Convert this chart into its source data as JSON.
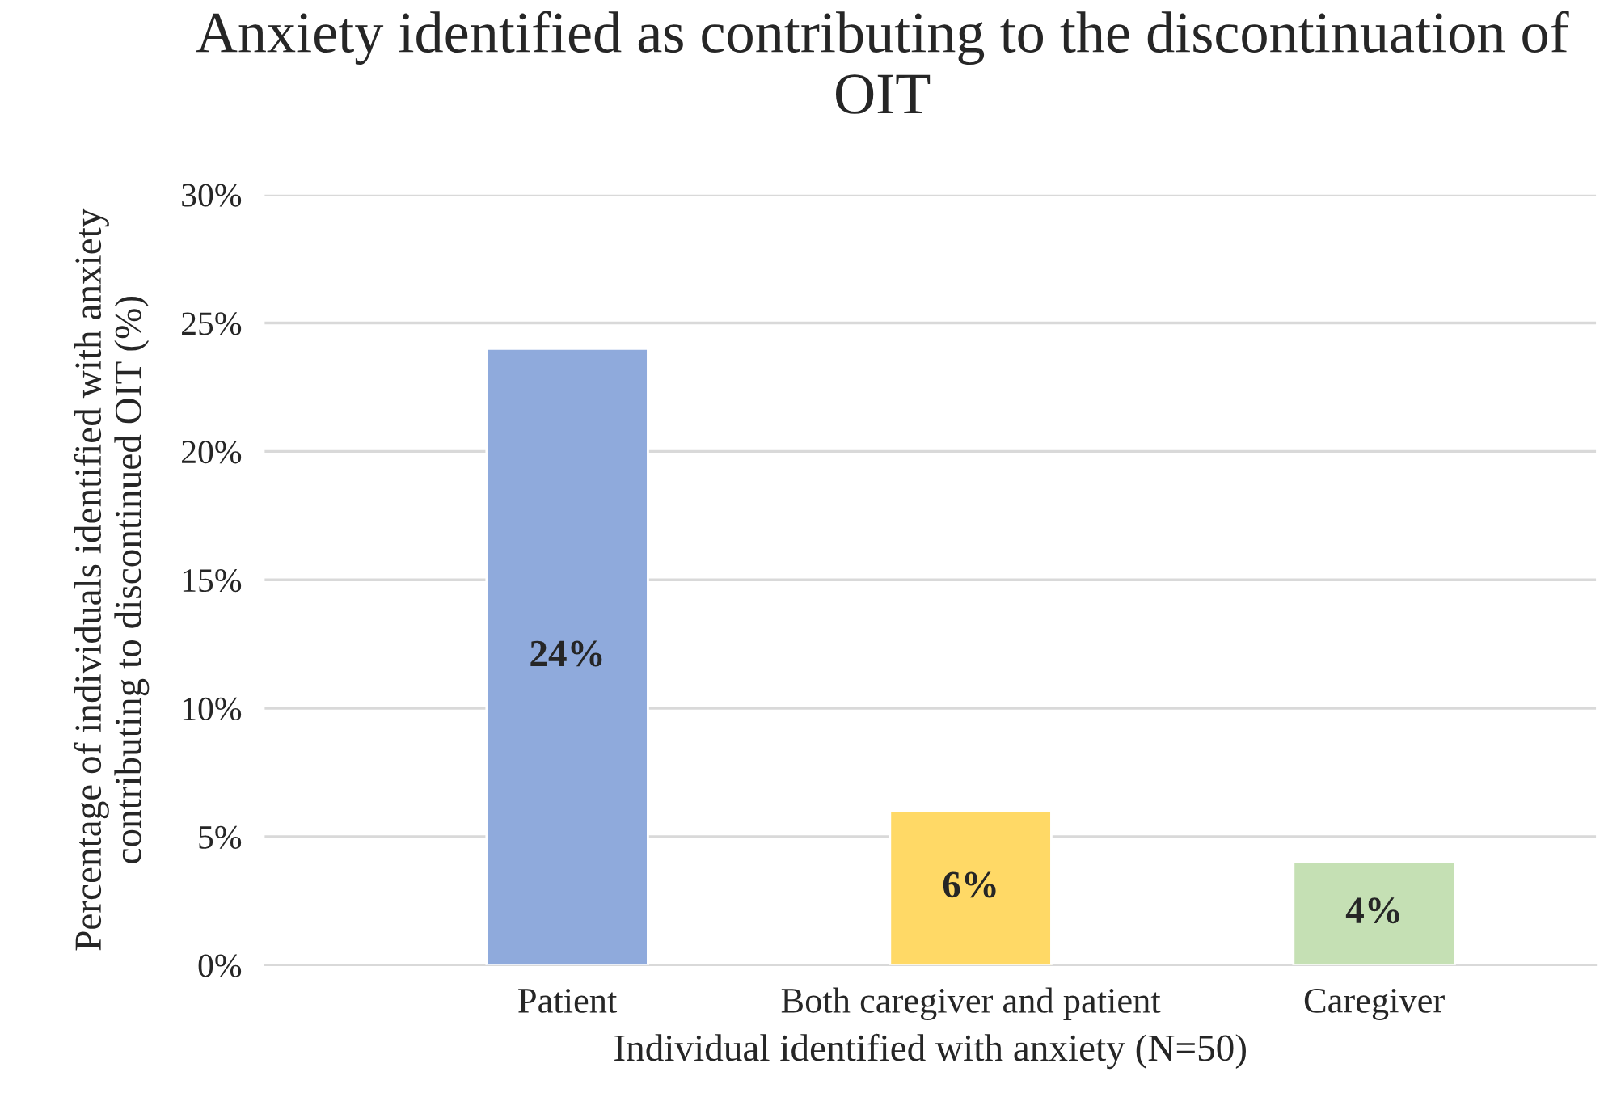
{
  "chart_data": {
    "type": "bar",
    "title": "Anxiety identified as contributing to the discontinuation of OIT",
    "xlabel": "Individual identified with anxiety (N=50)",
    "ylabel": "Percentage of individuals identified with anxiety\ncontributing to discontinued OIT (%)",
    "categories": [
      "Patient",
      "Both caregiver and patient",
      "Caregiver"
    ],
    "values": [
      24,
      6,
      4
    ],
    "colors": [
      "#8faadc",
      "#ffd966",
      "#c5e0b4"
    ],
    "value_labels": [
      "24%",
      "6%",
      "4%"
    ],
    "ylim": [
      0,
      30
    ],
    "yticks": [
      {
        "value": 0,
        "label": "0%"
      },
      {
        "value": 5,
        "label": "5%"
      },
      {
        "value": 10,
        "label": "10%"
      },
      {
        "value": 15,
        "label": "15%"
      },
      {
        "value": 20,
        "label": "20%"
      },
      {
        "value": 25,
        "label": "25%"
      },
      {
        "value": 30,
        "label": "30%"
      }
    ],
    "grid": "y"
  }
}
